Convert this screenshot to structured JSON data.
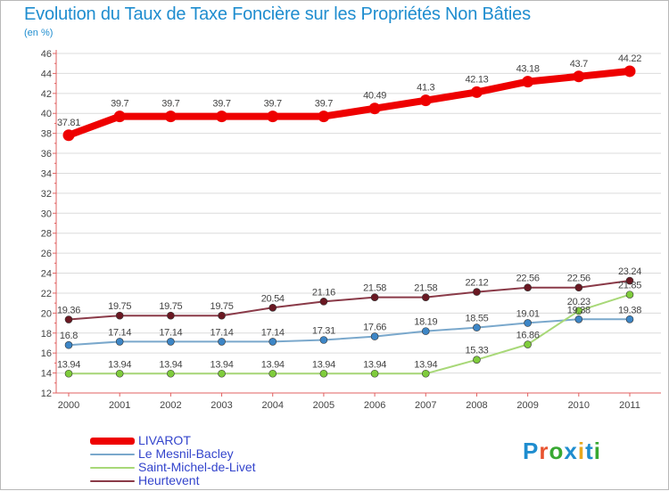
{
  "title": "Evolution du Taux de Taxe Foncière sur les Propriétés Non Bâties",
  "unit_label": "(en %)",
  "logo": {
    "text": "Proxiti",
    "letter_colors": [
      "#1f8dcf",
      "#e8532f",
      "#38a832",
      "#1f8dcf",
      "#e8a81f",
      "#1f8dcf",
      "#38a832"
    ]
  },
  "colors": {
    "axis": "#e06060",
    "grid": "#dcdcdc",
    "text": "#444444",
    "plot_background": "#ffffff"
  },
  "chart_data": {
    "type": "line",
    "title": "Evolution du Taux de Taxe Foncière sur les Propriétés Non Bâties",
    "ylabel": "(en %)",
    "xlabel": "",
    "x": [
      "2000",
      "2001",
      "2002",
      "2003",
      "2004",
      "2005",
      "2006",
      "2007",
      "2008",
      "2009",
      "2010",
      "2011"
    ],
    "ylim": [
      12,
      46
    ],
    "yticks": [
      12,
      14,
      16,
      18,
      20,
      22,
      24,
      26,
      28,
      30,
      32,
      34,
      36,
      38,
      40,
      42,
      44,
      46
    ],
    "grid": "horizontal",
    "legend_position": "bottom-left",
    "series": [
      {
        "name": "LIVAROT",
        "color": "#ee0000",
        "marker_color": "#ee0000",
        "weight": "heavy",
        "values": [
          37.81,
          39.7,
          39.7,
          39.7,
          39.7,
          39.7,
          40.49,
          41.3,
          42.13,
          43.18,
          43.7,
          44.22
        ],
        "labels": [
          "37.81",
          "39.7",
          "39.7",
          "39.7",
          "39.7",
          "39.7",
          "40.49",
          "41.3",
          "42.13",
          "43.18",
          "43.7",
          "44.22"
        ]
      },
      {
        "name": "Le Mesnil-Bacley",
        "color": "#7aa8cc",
        "marker_color": "#3d86c6",
        "weight": "normal",
        "values": [
          16.8,
          17.14,
          17.14,
          17.14,
          17.14,
          17.31,
          17.66,
          18.19,
          18.55,
          19.01,
          19.38,
          19.38
        ],
        "labels": [
          "16.8",
          "17.14",
          "17.14",
          "17.14",
          "17.14",
          "17.31",
          "17.66",
          "18.19",
          "18.55",
          "19.01",
          "19.38",
          "19.38"
        ]
      },
      {
        "name": "Saint-Michel-de-Livet",
        "color": "#a8d878",
        "marker_color": "#7fcc3c",
        "weight": "normal",
        "values": [
          13.94,
          13.94,
          13.94,
          13.94,
          13.94,
          13.94,
          13.94,
          13.94,
          15.33,
          16.86,
          20.23,
          21.85
        ],
        "labels": [
          "13.94",
          "13.94",
          "13.94",
          "13.94",
          "13.94",
          "13.94",
          "13.94",
          "13.94",
          "15.33",
          "16.86",
          "20.23",
          "21.85"
        ]
      },
      {
        "name": "Heurtevent",
        "color": "#8a3a48",
        "marker_color": "#6a1822",
        "weight": "normal",
        "values": [
          19.36,
          19.75,
          19.75,
          19.75,
          20.54,
          21.16,
          21.58,
          21.58,
          22.12,
          22.56,
          22.56,
          23.24
        ],
        "labels": [
          "19.36",
          "19.75",
          "19.75",
          "19.75",
          "20.54",
          "21.16",
          "21.58",
          "21.58",
          "22.12",
          "22.56",
          "22.56",
          "23.24"
        ]
      }
    ]
  }
}
